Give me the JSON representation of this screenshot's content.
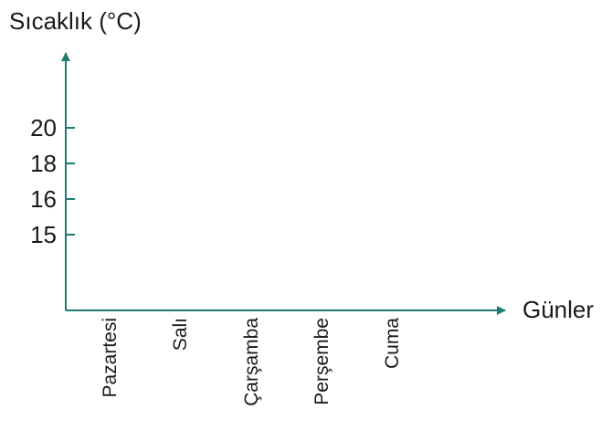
{
  "chart_data": {
    "type": "line",
    "ylabel": "Sıcaklık (°C)",
    "xlabel": "Günler",
    "categories": [
      "Pazartesi",
      "Salı",
      "Çarşamba",
      "Perşembe",
      "Cuma"
    ],
    "y_ticks": [
      "20",
      "18",
      "16",
      "15"
    ],
    "series": [],
    "grid": false,
    "axis_color": "#1f7a73"
  }
}
